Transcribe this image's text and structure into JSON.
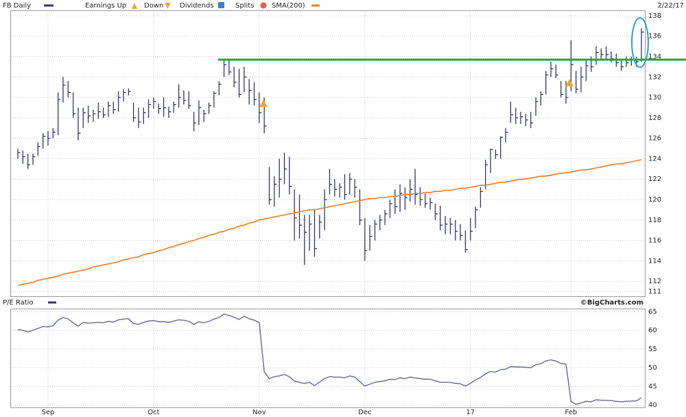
{
  "chart_data": [
    {
      "type": "ohlc",
      "date": "2/22/17",
      "legend_items": [
        "Earnings Up",
        "Down",
        "Dividends",
        "Splits"
      ],
      "series": [
        {
          "name": "FB Daily",
          "color": "#333366",
          "high": [
            125.0,
            124.8,
            124.5,
            124.5,
            125.6,
            126.5,
            126.7,
            127.0,
            130.5,
            132.0,
            131.6,
            130.5,
            129.0,
            129.0,
            129.2,
            128.8,
            129.5,
            129.0,
            129.6,
            129.6,
            130.6,
            130.8,
            130.9,
            129.5,
            129.0,
            129.0,
            129.8,
            130.0,
            129.4,
            130.0,
            129.1,
            129.6,
            131.3,
            130.7,
            130.6,
            128.6,
            129.7,
            128.8,
            129.5,
            130.6,
            131.6,
            133.6,
            133.7,
            133.0,
            132.8,
            133.0,
            131.8,
            131.5,
            130.5,
            130.0,
            123.2,
            122.3,
            124.0,
            124.6,
            124.2,
            121.0,
            120.5,
            118.5,
            118.5,
            119.0,
            118.5,
            121.0,
            123.0,
            122.0,
            121.6,
            122.5,
            122.6,
            122.0,
            121.0,
            118.2,
            117.5,
            118.0,
            118.5,
            119.0,
            120.0,
            121.0,
            121.5,
            121.2,
            122.0,
            123.0,
            121.2,
            120.6,
            120.2,
            119.6,
            119.4,
            118.4,
            118.2,
            118.0,
            117.6,
            117.0,
            118.2,
            119.3,
            121.2,
            123.9,
            125.0,
            124.9,
            126.2,
            127.0,
            129.6,
            129.0,
            128.6,
            128.4,
            128.6,
            130.0,
            130.6,
            132.6,
            133.5,
            133.2,
            131.6,
            131.6,
            135.6,
            132.6,
            133.0,
            133.6,
            134.0,
            135.0,
            134.8,
            135.0,
            134.5,
            134.3,
            133.8,
            134.0,
            134.0,
            134.0,
            136.8
          ],
          "low": [
            124.0,
            123.5,
            123.0,
            123.4,
            124.3,
            125.0,
            125.3,
            126.0,
            126.3,
            129.5,
            130.0,
            128.0,
            125.8,
            127.0,
            127.5,
            127.6,
            127.9,
            128.0,
            128.1,
            128.4,
            128.6,
            129.6,
            130.2,
            127.6,
            127.0,
            127.4,
            128.0,
            128.9,
            128.4,
            128.1,
            128.0,
            128.5,
            129.0,
            129.3,
            128.9,
            126.7,
            127.3,
            127.6,
            128.4,
            129.0,
            130.2,
            132.0,
            132.2,
            131.0,
            130.0,
            130.5,
            129.3,
            129.2,
            127.5,
            126.5,
            119.5,
            119.3,
            120.2,
            121.5,
            120.5,
            116.0,
            116.2,
            113.6,
            115.0,
            114.4,
            116.2,
            117.0,
            120.5,
            120.3,
            120.2,
            120.0,
            120.5,
            120.2,
            117.5,
            114.0,
            115.0,
            116.0,
            117.0,
            117.5,
            118.2,
            118.6,
            118.8,
            119.0,
            119.8,
            119.5,
            119.4,
            119.2,
            119.0,
            118.0,
            117.0,
            116.6,
            116.6,
            116.0,
            116.0,
            114.8,
            116.0,
            117.2,
            119.2,
            121.0,
            122.6,
            124.0,
            124.0,
            125.6,
            127.5,
            127.4,
            127.4,
            127.2,
            127.0,
            128.2,
            129.2,
            130.3,
            132.0,
            131.9,
            130.0,
            129.4,
            130.6,
            130.4,
            130.5,
            131.6,
            132.5,
            133.2,
            133.6,
            133.8,
            133.4,
            133.0,
            132.6,
            133.0,
            133.1,
            133.0,
            133.5
          ],
          "close": [
            124.6,
            124.2,
            123.4,
            124.2,
            125.2,
            126.2,
            126.0,
            126.6,
            129.8,
            131.2,
            130.5,
            128.4,
            126.5,
            128.5,
            128.2,
            128.4,
            128.6,
            128.3,
            129.2,
            128.8,
            130.0,
            130.5,
            130.6,
            128.0,
            127.6,
            128.5,
            129.3,
            129.6,
            128.9,
            129.0,
            128.6,
            129.3,
            130.0,
            129.7,
            129.2,
            127.5,
            129.0,
            128.4,
            129.2,
            130.4,
            131.3,
            133.2,
            132.5,
            131.5,
            130.3,
            132.0,
            130.7,
            129.8,
            128.5,
            127.2,
            120.0,
            121.5,
            122.0,
            123.0,
            121.3,
            118.2,
            117.5,
            116.8,
            117.6,
            115.2,
            117.8,
            120.0,
            121.5,
            121.0,
            121.2,
            120.5,
            122.0,
            121.2,
            118.0,
            115.0,
            116.4,
            117.6,
            118.0,
            118.6,
            119.6,
            119.3,
            120.6,
            120.2,
            121.0,
            120.5,
            120.0,
            119.6,
            119.7,
            118.6,
            117.5,
            117.6,
            117.6,
            116.9,
            116.5,
            115.1,
            116.9,
            119.0,
            120.8,
            123.4,
            124.9,
            124.4,
            126.1,
            126.6,
            128.3,
            128.0,
            128.1,
            127.8,
            127.5,
            129.6,
            130.3,
            132.2,
            132.8,
            132.2,
            130.3,
            130.0,
            133.2,
            130.8,
            132.0,
            133.1,
            133.0,
            134.4,
            134.2,
            134.2,
            133.8,
            133.4,
            133.0,
            133.4,
            133.7,
            133.5,
            136.4
          ]
        },
        {
          "name": "SMA(200)",
          "color": "#f07c20",
          "values": [
            111.6,
            111.7,
            111.8,
            111.9,
            112.1,
            112.2,
            112.3,
            112.4,
            112.5,
            112.7,
            112.8,
            112.9,
            113.0,
            113.1,
            113.2,
            113.4,
            113.5,
            113.6,
            113.7,
            113.8,
            113.9,
            114.1,
            114.2,
            114.3,
            114.4,
            114.6,
            114.7,
            114.8,
            115.0,
            115.1,
            115.3,
            115.4,
            115.6,
            115.7,
            115.9,
            116.0,
            116.2,
            116.3,
            116.5,
            116.6,
            116.8,
            116.9,
            117.1,
            117.2,
            117.4,
            117.5,
            117.7,
            117.8,
            118.0,
            118.1,
            118.2,
            118.3,
            118.4,
            118.5,
            118.6,
            118.7,
            118.8,
            118.9,
            119.0,
            119.0,
            119.1,
            119.2,
            119.3,
            119.4,
            119.5,
            119.6,
            119.7,
            119.8,
            119.9,
            120.0,
            120.1,
            120.1,
            120.2,
            120.2,
            120.3,
            120.3,
            120.4,
            120.5,
            120.5,
            120.6,
            120.6,
            120.7,
            120.7,
            120.8,
            120.8,
            120.9,
            120.9,
            121.0,
            121.1,
            121.1,
            121.2,
            121.3,
            121.4,
            121.4,
            121.5,
            121.6,
            121.7,
            121.7,
            121.8,
            121.9,
            122.0,
            122.0,
            122.1,
            122.2,
            122.3,
            122.3,
            122.4,
            122.5,
            122.6,
            122.6,
            122.7,
            122.8,
            122.9,
            122.9,
            123.0,
            123.1,
            123.2,
            123.3,
            123.4,
            123.5,
            123.5,
            123.6,
            123.7,
            123.8,
            123.9
          ]
        }
      ],
      "reference_line": {
        "value": 133.7,
        "color": "#22a33a"
      },
      "ylim": [
        110.5,
        138.5
      ],
      "yticks": [
        111,
        112,
        114,
        116,
        118,
        120,
        122,
        124,
        126,
        128,
        130,
        132,
        134,
        136,
        138
      ],
      "grid": true
    },
    {
      "type": "line",
      "source": "©BigCharts.com",
      "categories": [
        null,
        null,
        null,
        null,
        null,
        null,
        "Sep",
        null,
        null,
        null,
        null,
        null,
        null,
        null,
        null,
        null,
        null,
        null,
        null,
        null,
        null,
        null,
        null,
        null,
        null,
        null,
        null,
        "Oct",
        null,
        null,
        null,
        null,
        null,
        null,
        null,
        null,
        null,
        null,
        null,
        null,
        null,
        null,
        null,
        null,
        null,
        null,
        null,
        null,
        "Nov",
        null,
        null,
        null,
        null,
        null,
        null,
        null,
        null,
        null,
        null,
        null,
        null,
        null,
        null,
        null,
        null,
        null,
        null,
        null,
        null,
        "Dec",
        null,
        null,
        null,
        null,
        null,
        null,
        null,
        null,
        null,
        null,
        null,
        null,
        null,
        null,
        null,
        null,
        null,
        null,
        null,
        null,
        "17",
        null,
        null,
        null,
        null,
        null,
        null,
        null,
        null,
        null,
        null,
        null,
        null,
        null,
        null,
        null,
        null,
        null,
        null,
        null,
        "Feb",
        null,
        null,
        null,
        null,
        null,
        null,
        null,
        null,
        null,
        null,
        null,
        null,
        null,
        null
      ],
      "series": [
        {
          "name": "P/E Ratio",
          "color": "#666699",
          "values": [
            60.2,
            60.0,
            59.6,
            60.0,
            60.5,
            61.0,
            60.9,
            61.2,
            62.7,
            63.4,
            63.0,
            62.0,
            61.1,
            62.1,
            61.9,
            62.0,
            62.1,
            62.0,
            62.4,
            62.2,
            62.8,
            63.0,
            63.1,
            61.8,
            61.6,
            62.1,
            62.5,
            62.6,
            62.3,
            62.3,
            62.1,
            62.5,
            62.8,
            62.7,
            62.4,
            61.6,
            62.3,
            62.0,
            62.4,
            63.0,
            63.4,
            64.3,
            64.0,
            63.5,
            62.9,
            63.8,
            63.1,
            62.7,
            62.1,
            48.9,
            47.1,
            47.6,
            47.8,
            48.2,
            47.6,
            46.4,
            46.1,
            45.8,
            46.1,
            45.2,
            46.2,
            47.1,
            47.6,
            47.5,
            47.5,
            47.3,
            47.8,
            47.5,
            46.3,
            45.1,
            45.6,
            46.1,
            46.3,
            46.5,
            46.9,
            46.8,
            47.3,
            47.1,
            47.5,
            47.3,
            47.1,
            46.9,
            46.9,
            46.5,
            46.1,
            46.1,
            46.1,
            45.8,
            45.7,
            45.1,
            45.8,
            46.7,
            47.4,
            48.4,
            49.0,
            48.8,
            49.5,
            49.6,
            50.3,
            50.2,
            50.2,
            50.1,
            50.0,
            50.8,
            51.1,
            51.8,
            52.1,
            51.8,
            51.1,
            51.0,
            41.0,
            40.2,
            40.6,
            41.0,
            40.9,
            41.4,
            41.3,
            41.3,
            41.2,
            41.0,
            40.9,
            41.0,
            41.1,
            41.1,
            42.0
          ]
        }
      ],
      "ylim": [
        39.3,
        65.7
      ],
      "yticks": [
        40,
        45,
        50,
        55,
        60,
        65
      ],
      "grid": true
    }
  ]
}
